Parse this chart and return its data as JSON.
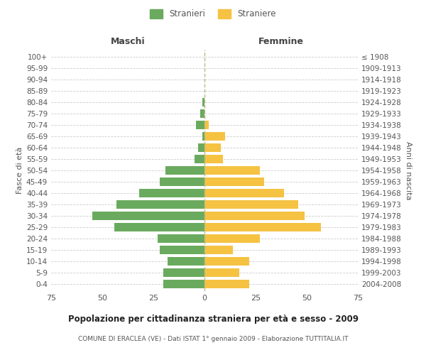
{
  "age_groups": [
    "0-4",
    "5-9",
    "10-14",
    "15-19",
    "20-24",
    "25-29",
    "30-34",
    "35-39",
    "40-44",
    "45-49",
    "50-54",
    "55-59",
    "60-64",
    "65-69",
    "70-74",
    "75-79",
    "80-84",
    "85-89",
    "90-94",
    "95-99",
    "100+"
  ],
  "birth_years": [
    "2004-2008",
    "1999-2003",
    "1994-1998",
    "1989-1993",
    "1984-1988",
    "1979-1983",
    "1974-1978",
    "1969-1973",
    "1964-1968",
    "1959-1963",
    "1954-1958",
    "1949-1953",
    "1944-1948",
    "1939-1943",
    "1934-1938",
    "1929-1933",
    "1924-1928",
    "1919-1923",
    "1914-1918",
    "1909-1913",
    "≤ 1908"
  ],
  "maschi": [
    20,
    20,
    18,
    22,
    23,
    44,
    55,
    43,
    32,
    22,
    19,
    5,
    3,
    1,
    4,
    2,
    1,
    0,
    0,
    0,
    0
  ],
  "femmine": [
    22,
    17,
    22,
    14,
    27,
    57,
    49,
    46,
    39,
    29,
    27,
    9,
    8,
    10,
    2,
    0,
    0,
    0,
    0,
    0,
    0
  ],
  "color_maschi": "#6aaa5e",
  "color_femmine": "#f5c242",
  "title": "Popolazione per cittadinanza straniera per età e sesso - 2009",
  "subtitle": "COMUNE DI ERACLEA (VE) - Dati ISTAT 1° gennaio 2009 - Elaborazione TUTTITALIA.IT",
  "xlabel_left": "Maschi",
  "xlabel_right": "Femmine",
  "ylabel_left": "Fasce di età",
  "ylabel_right": "Anni di nascita",
  "legend_stranieri": "Stranieri",
  "legend_straniere": "Straniere",
  "xlim": 75,
  "background_color": "#ffffff",
  "grid_color": "#cccccc"
}
